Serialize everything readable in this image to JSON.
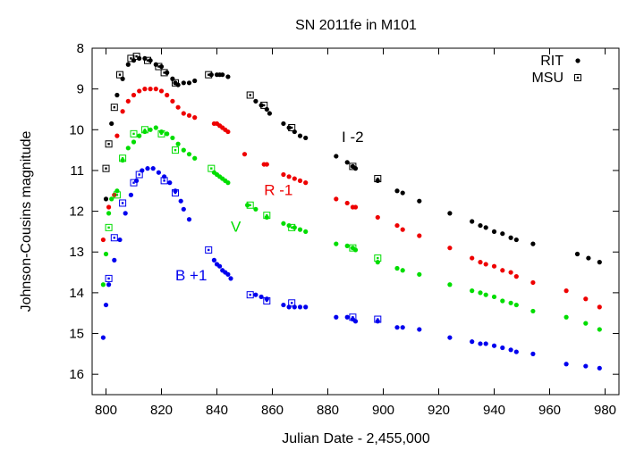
{
  "chart_data": {
    "type": "scatter",
    "title": "SN 2011fe in M101",
    "xlabel": "Julian Date - 2,455,000",
    "ylabel": "Johnson-Cousins magnitude",
    "xlim": [
      795,
      985
    ],
    "ylim": [
      8,
      16.5
    ],
    "y_inverted": true,
    "x_ticks": [
      800,
      820,
      840,
      860,
      880,
      900,
      920,
      940,
      960,
      980
    ],
    "y_ticks": [
      8,
      9,
      10,
      11,
      12,
      13,
      14,
      15,
      16
    ],
    "grid": false,
    "legend_position": "top-right",
    "legend": [
      {
        "label": "RIT",
        "marker": "dot"
      },
      {
        "label": "MSU",
        "marker": "boxed-square"
      }
    ],
    "colors": {
      "I": "#000000",
      "R": "#ee0000",
      "V": "#00dd00",
      "B": "#0000ee"
    },
    "annotations": [
      {
        "text": "I -2",
        "band": "I",
        "x": 885,
        "y": 10.3
      },
      {
        "text": "R -1",
        "band": "R",
        "x": 857,
        "y": 11.6
      },
      {
        "text": "V",
        "band": "V",
        "x": 845,
        "y": 12.5
      },
      {
        "text": "B +1",
        "band": "B",
        "x": 825,
        "y": 13.7
      }
    ],
    "series": [
      {
        "band": "I",
        "source": "RIT",
        "x": [
          800,
          802,
          804,
          806,
          808,
          810,
          812,
          814,
          816,
          818,
          820,
          822,
          824,
          825,
          826,
          828,
          830,
          832,
          838,
          840,
          841,
          842,
          844,
          854,
          856,
          858,
          859,
          864,
          866,
          868,
          870,
          872,
          883,
          887,
          889,
          890,
          898,
          905,
          907,
          913,
          924,
          932,
          935,
          937,
          940,
          943,
          946,
          948,
          954,
          970,
          974,
          978
        ],
        "y": [
          11.7,
          9.85,
          9.15,
          8.75,
          8.4,
          8.3,
          8.25,
          8.25,
          8.3,
          8.4,
          8.45,
          8.6,
          8.75,
          8.85,
          8.9,
          8.85,
          8.85,
          8.8,
          8.65,
          8.65,
          8.65,
          8.65,
          8.7,
          9.3,
          9.4,
          9.5,
          9.6,
          9.85,
          9.95,
          10.05,
          10.15,
          10.2,
          10.65,
          10.8,
          10.9,
          10.95,
          11.25,
          11.5,
          11.55,
          11.75,
          12.05,
          12.25,
          12.35,
          12.4,
          12.5,
          12.55,
          12.65,
          12.7,
          12.8,
          13.05,
          13.15,
          13.25
        ]
      },
      {
        "band": "I",
        "source": "MSU",
        "x": [
          800,
          801,
          803,
          805,
          809,
          811,
          815,
          819,
          821,
          825,
          837,
          852,
          857,
          867,
          889,
          898
        ],
        "y": [
          10.95,
          10.35,
          9.45,
          8.65,
          8.25,
          8.2,
          8.3,
          8.45,
          8.6,
          8.85,
          8.65,
          9.15,
          9.4,
          9.95,
          10.9,
          11.2
        ]
      },
      {
        "band": "R",
        "source": "RIT",
        "x": [
          799,
          801,
          803,
          804,
          806,
          808,
          810,
          812,
          814,
          816,
          818,
          820,
          822,
          824,
          826,
          828,
          830,
          832,
          839,
          840,
          841,
          842,
          843,
          844,
          850,
          857,
          858,
          864,
          866,
          868,
          870,
          872,
          883,
          887,
          889,
          890,
          898,
          905,
          907,
          913,
          924,
          932,
          935,
          937,
          940,
          943,
          946,
          948,
          954,
          966,
          973,
          978
        ],
        "y": [
          12.7,
          11.9,
          11.6,
          10.15,
          9.55,
          9.3,
          9.15,
          9.05,
          9.0,
          9.0,
          9.0,
          9.05,
          9.15,
          9.3,
          9.45,
          9.6,
          9.65,
          9.7,
          9.85,
          9.85,
          9.9,
          9.95,
          10.0,
          10.05,
          10.6,
          10.85,
          10.85,
          11.1,
          11.15,
          11.2,
          11.25,
          11.3,
          11.7,
          11.8,
          11.9,
          11.9,
          12.15,
          12.35,
          12.45,
          12.6,
          12.9,
          13.15,
          13.25,
          13.3,
          13.35,
          13.45,
          13.5,
          13.6,
          13.75,
          13.95,
          14.15,
          14.35
        ]
      },
      {
        "band": "V",
        "source": "RIT",
        "x": [
          799,
          800,
          801,
          802,
          804,
          806,
          808,
          810,
          812,
          814,
          816,
          818,
          820,
          822,
          824,
          826,
          828,
          830,
          832,
          839,
          840,
          841,
          842,
          843,
          844,
          851,
          854,
          858,
          864,
          866,
          868,
          870,
          872,
          883,
          887,
          889,
          890,
          898,
          905,
          907,
          913,
          924,
          932,
          935,
          937,
          940,
          943,
          946,
          948,
          954,
          966,
          973,
          978
        ],
        "y": [
          13.8,
          13.05,
          12.05,
          11.7,
          11.5,
          10.75,
          10.45,
          10.3,
          10.15,
          10.05,
          10.0,
          9.95,
          10.05,
          10.1,
          10.2,
          10.35,
          10.5,
          10.6,
          10.7,
          11.05,
          11.1,
          11.15,
          11.2,
          11.25,
          11.3,
          11.85,
          11.95,
          12.15,
          12.3,
          12.35,
          12.4,
          12.45,
          12.5,
          12.8,
          12.85,
          12.9,
          12.95,
          13.25,
          13.4,
          13.45,
          13.55,
          13.8,
          13.95,
          14.0,
          14.05,
          14.1,
          14.2,
          14.25,
          14.3,
          14.45,
          14.6,
          14.75,
          14.9
        ]
      },
      {
        "band": "V",
        "source": "MSU",
        "x": [
          801,
          804,
          806,
          810,
          814,
          820,
          825,
          838,
          852,
          858,
          867,
          889,
          898
        ],
        "y": [
          12.4,
          11.6,
          10.7,
          10.1,
          10.0,
          10.1,
          10.5,
          10.95,
          11.85,
          12.1,
          12.4,
          12.9,
          13.15
        ]
      },
      {
        "band": "B",
        "source": "RIT",
        "x": [
          799,
          800,
          801,
          803,
          805,
          807,
          809,
          811,
          813,
          815,
          817,
          819,
          821,
          823,
          825,
          827,
          828,
          830,
          839,
          840,
          841,
          842,
          843,
          844,
          845,
          854,
          856,
          858,
          864,
          866,
          868,
          870,
          872,
          883,
          887,
          889,
          890,
          898,
          905,
          907,
          913,
          924,
          932,
          935,
          937,
          940,
          943,
          946,
          948,
          954,
          966,
          973,
          978
        ],
        "y": [
          15.1,
          14.3,
          13.8,
          13.2,
          12.7,
          12.05,
          11.6,
          11.25,
          11.0,
          10.95,
          10.95,
          11.05,
          11.15,
          11.3,
          11.5,
          11.75,
          11.95,
          12.2,
          13.2,
          13.3,
          13.35,
          13.45,
          13.5,
          13.55,
          13.65,
          14.05,
          14.1,
          14.15,
          14.3,
          14.35,
          14.35,
          14.35,
          14.35,
          14.6,
          14.6,
          14.65,
          14.7,
          14.7,
          14.85,
          14.85,
          14.9,
          15.1,
          15.2,
          15.25,
          15.25,
          15.3,
          15.35,
          15.4,
          15.45,
          15.5,
          15.75,
          15.8,
          15.85
        ]
      },
      {
        "band": "B",
        "source": "MSU",
        "x": [
          801,
          803,
          806,
          810,
          812,
          821,
          825,
          837,
          852,
          858,
          867,
          889,
          898
        ],
        "y": [
          13.65,
          12.65,
          11.8,
          11.3,
          11.1,
          11.25,
          11.55,
          12.95,
          14.05,
          14.2,
          14.25,
          14.6,
          14.65
        ]
      }
    ]
  }
}
